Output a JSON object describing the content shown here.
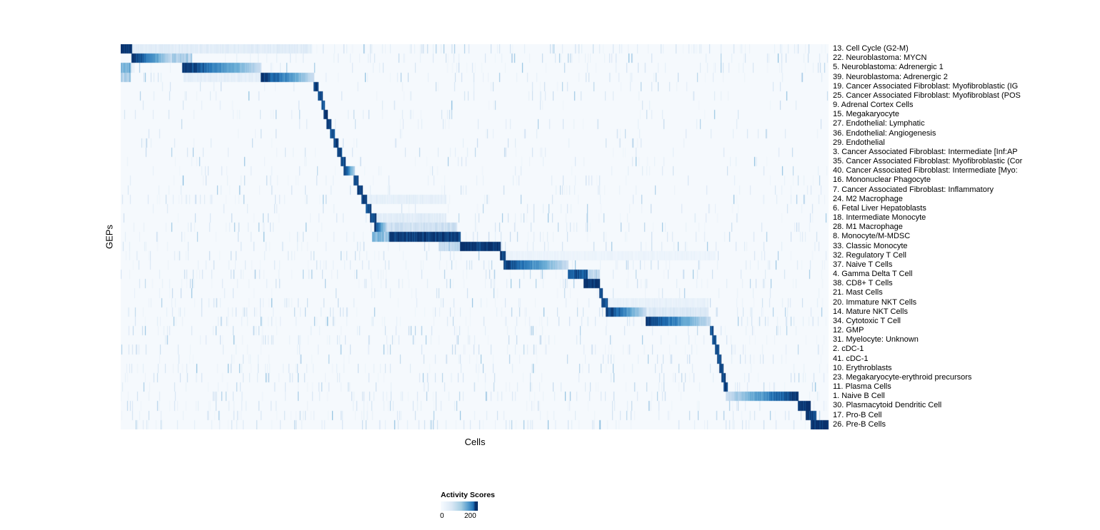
{
  "chart_data": {
    "type": "heatmap",
    "title": "",
    "xlabel": "Cells",
    "ylabel": "GEPs",
    "legend": {
      "title": "Activity Scores",
      "min": "0",
      "max": "200",
      "position": "bottom-center"
    },
    "colormap": {
      "name": "Blues",
      "low": "#f7fbff",
      "high": "#08306b"
    },
    "x_axis": "individual cells (columns, unlabeled, sorted by assigned GEP)",
    "grid": false,
    "rows": [
      {
        "label": "13. Cell Cycle (G2-M)",
        "block": [
          0.0,
          0.016
        ],
        "v": 1.0,
        "fade": "none",
        "noise": 0.55,
        "bands": [
          [
            0.016,
            0.27,
            0.12
          ]
        ]
      },
      {
        "label": "22. Neuroblastoma: MYCN",
        "block": [
          0.016,
          0.072
        ],
        "v": 1.0,
        "fade": "left",
        "noise": 0.3,
        "bands": [
          [
            0.072,
            0.1,
            0.35
          ]
        ]
      },
      {
        "label": "5. Neuroblastoma: Adrenergic 1",
        "block": [
          0.087,
          0.198
        ],
        "v": 1.0,
        "fade": "left",
        "noise": 0.3,
        "bands": [
          [
            0.0,
            0.014,
            0.5
          ]
        ]
      },
      {
        "label": "39. Neuroblastoma: Adrenergic 2",
        "block": [
          0.198,
          0.273
        ],
        "v": 1.0,
        "fade": "left",
        "noise": 0.25,
        "bands": [
          [
            0.0,
            0.014,
            0.35
          ],
          [
            0.09,
            0.198,
            0.1
          ]
        ]
      },
      {
        "label": "19. Cancer Associated Fibroblast: Myofibroblastic (IG",
        "block": [
          0.273,
          0.279
        ],
        "v": 0.95,
        "fade": "none",
        "noise": 0.15,
        "bands": []
      },
      {
        "label": "25. Cancer Associated Fibroblast: Myofibroblast (POS",
        "block": [
          0.279,
          0.285
        ],
        "v": 0.9,
        "fade": "none",
        "noise": 0.15,
        "bands": []
      },
      {
        "label": "9. Adrenal Cortex Cells",
        "block": [
          0.284,
          0.288
        ],
        "v": 0.85,
        "fade": "none",
        "noise": 0.1,
        "bands": []
      },
      {
        "label": "15. Megakaryocyte",
        "block": [
          0.287,
          0.292
        ],
        "v": 0.95,
        "fade": "none",
        "noise": 0.15,
        "bands": []
      },
      {
        "label": "27. Endothelial: Lymphatic",
        "block": [
          0.291,
          0.297
        ],
        "v": 0.95,
        "fade": "none",
        "noise": 0.12,
        "bands": []
      },
      {
        "label": "36. Endothelial: Angiogenesis",
        "block": [
          0.296,
          0.302
        ],
        "v": 0.9,
        "fade": "none",
        "noise": 0.12,
        "bands": []
      },
      {
        "label": "29. Endothelial",
        "block": [
          0.301,
          0.307
        ],
        "v": 0.9,
        "fade": "none",
        "noise": 0.12,
        "bands": []
      },
      {
        "label": "3. Cancer Associated Fibroblast: Intermediate [Inf:AP",
        "block": [
          0.306,
          0.312
        ],
        "v": 0.9,
        "fade": "none",
        "noise": 0.15,
        "bands": []
      },
      {
        "label": "35. Cancer Associated Fibroblast: Myofibroblastic (Cor",
        "block": [
          0.311,
          0.317
        ],
        "v": 0.9,
        "fade": "none",
        "noise": 0.15,
        "bands": []
      },
      {
        "label": "40. Cancer Associated Fibroblast: Intermediate [Myo:",
        "block": [
          0.315,
          0.33
        ],
        "v": 1.0,
        "fade": "left",
        "noise": 0.15,
        "bands": []
      },
      {
        "label": "16. Mononuclear Phagocyte",
        "block": [
          0.329,
          0.336
        ],
        "v": 0.9,
        "fade": "none",
        "noise": 0.2,
        "bands": []
      },
      {
        "label": "7. Cancer Associated Fibroblast: Inflammatory",
        "block": [
          0.335,
          0.342
        ],
        "v": 0.95,
        "fade": "none",
        "noise": 0.2,
        "bands": []
      },
      {
        "label": "24. M2 Macrophage",
        "block": [
          0.341,
          0.348
        ],
        "v": 0.95,
        "fade": "none",
        "noise": 0.25,
        "bands": [
          [
            0.35,
            0.46,
            0.1
          ]
        ]
      },
      {
        "label": "6. Fetal Liver Hepatoblasts",
        "block": [
          0.347,
          0.354
        ],
        "v": 0.9,
        "fade": "none",
        "noise": 0.15,
        "bands": []
      },
      {
        "label": "18. Intermediate Monocyte",
        "block": [
          0.353,
          0.361
        ],
        "v": 0.9,
        "fade": "none",
        "noise": 0.2,
        "bands": [
          [
            0.361,
            0.46,
            0.12
          ]
        ]
      },
      {
        "label": "28. M1 Macrophage",
        "block": [
          0.359,
          0.376
        ],
        "v": 0.95,
        "fade": "left",
        "noise": 0.25,
        "bands": [
          [
            0.376,
            0.475,
            0.22
          ]
        ]
      },
      {
        "label": "8. Monocyte/M-MDSC",
        "block": [
          0.38,
          0.48
        ],
        "v": 0.95,
        "fade": "none",
        "noise": 0.3,
        "bands": [
          [
            0.356,
            0.38,
            0.45
          ]
        ]
      },
      {
        "label": "33. Classic Monocyte",
        "block": [
          0.48,
          0.536
        ],
        "v": 1.0,
        "fade": "none",
        "noise": 0.25,
        "bands": [
          [
            0.45,
            0.48,
            0.3
          ]
        ]
      },
      {
        "label": "32. Regulatory T Cell",
        "block": [
          0.536,
          0.543
        ],
        "v": 0.9,
        "fade": "none",
        "noise": 0.3,
        "bands": [
          [
            0.543,
            0.84,
            0.06
          ]
        ]
      },
      {
        "label": "37. Naive T Cells",
        "block": [
          0.541,
          0.632
        ],
        "v": 0.95,
        "fade": "left",
        "noise": 0.35,
        "bands": []
      },
      {
        "label": "4. Gamma Delta T Cell",
        "block": [
          0.632,
          0.659
        ],
        "v": 0.85,
        "fade": "none",
        "noise": 0.3,
        "bands": [
          [
            0.659,
            0.677,
            0.3
          ]
        ]
      },
      {
        "label": "38. CD8+ T Cells",
        "block": [
          0.654,
          0.677
        ],
        "v": 1.0,
        "fade": "none",
        "noise": 0.3,
        "bands": []
      },
      {
        "label": "21. Mast Cells",
        "block": [
          0.677,
          0.681
        ],
        "v": 0.9,
        "fade": "none",
        "noise": 0.15,
        "bands": []
      },
      {
        "label": "20. Immature NKT Cells",
        "block": [
          0.68,
          0.688
        ],
        "v": 0.9,
        "fade": "none",
        "noise": 0.3,
        "bands": [
          [
            0.688,
            0.83,
            0.08
          ]
        ]
      },
      {
        "label": "14. Mature NKT Cells",
        "block": [
          0.686,
          0.742
        ],
        "v": 1.0,
        "fade": "left",
        "noise": 0.35,
        "bands": [
          [
            0.742,
            0.83,
            0.15
          ]
        ]
      },
      {
        "label": "34. Cytotoxic T Cell",
        "block": [
          0.742,
          0.833
        ],
        "v": 1.0,
        "fade": "left",
        "noise": 0.4,
        "bands": []
      },
      {
        "label": "12. GMP",
        "block": [
          0.833,
          0.837
        ],
        "v": 0.85,
        "fade": "none",
        "noise": 0.25,
        "bands": []
      },
      {
        "label": "31. Myelocyte: Unknown",
        "block": [
          0.836,
          0.841
        ],
        "v": 0.85,
        "fade": "none",
        "noise": 0.3,
        "bands": []
      },
      {
        "label": "2. cDC-1",
        "block": [
          0.84,
          0.845
        ],
        "v": 0.9,
        "fade": "none",
        "noise": 0.3,
        "bands": []
      },
      {
        "label": "41. cDC-1",
        "block": [
          0.843,
          0.848
        ],
        "v": 0.9,
        "fade": "none",
        "noise": 0.25,
        "bands": []
      },
      {
        "label": "10. Erythroblasts",
        "block": [
          0.846,
          0.851
        ],
        "v": 0.9,
        "fade": "none",
        "noise": 0.3,
        "bands": []
      },
      {
        "label": "23. Megakaryocyte-erythroid precursors",
        "block": [
          0.849,
          0.854
        ],
        "v": 0.9,
        "fade": "none",
        "noise": 0.3,
        "bands": []
      },
      {
        "label": "11. Plasma Cells",
        "block": [
          0.852,
          0.857
        ],
        "v": 0.95,
        "fade": "none",
        "noise": 0.3,
        "bands": []
      },
      {
        "label": "1. Naive B Cell",
        "block": [
          0.855,
          0.957
        ],
        "v": 1.0,
        "fade": "right",
        "noise": 0.35,
        "bands": []
      },
      {
        "label": "30. Plasmacytoid Dendritic Cell",
        "block": [
          0.957,
          0.974
        ],
        "v": 1.0,
        "fade": "none",
        "noise": 0.3,
        "bands": []
      },
      {
        "label": "17. Pro-B Cell",
        "block": [
          0.968,
          0.982
        ],
        "v": 0.95,
        "fade": "none",
        "noise": 0.35,
        "bands": []
      },
      {
        "label": "26. Pre-B Cells",
        "block": [
          0.975,
          1.0
        ],
        "v": 1.0,
        "fade": "none",
        "noise": 0.4,
        "bands": []
      }
    ]
  }
}
